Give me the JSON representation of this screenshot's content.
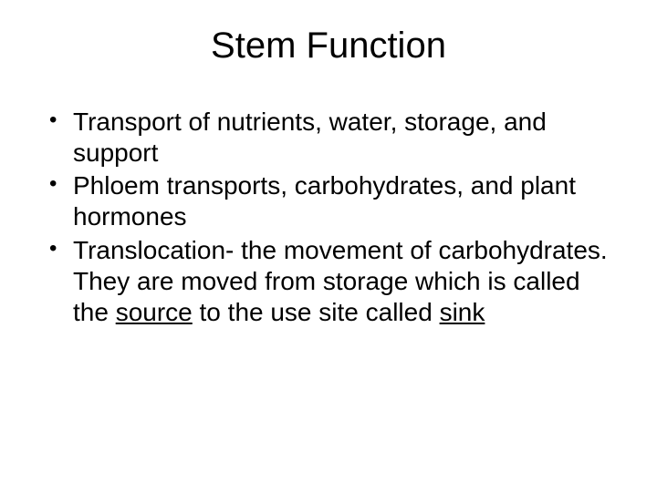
{
  "slide": {
    "title": "Stem Function",
    "title_fontsize": 40,
    "body_fontsize": 28,
    "text_color": "#000000",
    "background_color": "#ffffff",
    "bullets": [
      {
        "text": "Transport of nutrients, water, storage, and support"
      },
      {
        "text": "Phloem transports, carbohydrates, and plant hormones"
      },
      {
        "prefix": "Translocation- the movement of carbohydrates. They are moved from storage which is called the ",
        "underlined1": "source",
        "mid": " to the use site called ",
        "underlined2": "sink"
      }
    ]
  }
}
